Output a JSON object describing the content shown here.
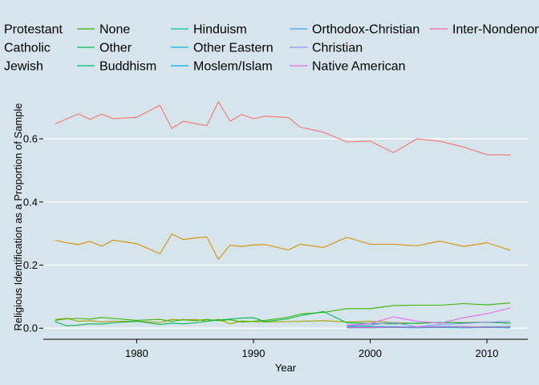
{
  "chart_data": {
    "type": "line",
    "title": "",
    "xlabel": "Year",
    "ylabel": "Religious Identification as a Proportion of Sample",
    "xlim": [
      1972,
      2013.5
    ],
    "ylim": [
      -0.035,
      0.74
    ],
    "x_ticks": [
      1980,
      1990,
      2000,
      2010
    ],
    "y_ticks": [
      0.0,
      0.2,
      0.4,
      0.6
    ],
    "y_tick_labels": [
      "0.0",
      "0.2",
      "0.4",
      "0.6"
    ],
    "grid": "horizontal",
    "legend": "top",
    "series": [
      {
        "name": "Protestant",
        "color": "#f8766d",
        "x": [
          1973,
          1974,
          1975,
          1976,
          1977,
          1978,
          1980,
          1982,
          1983,
          1984,
          1985,
          1986,
          1987,
          1988,
          1989,
          1990,
          1991,
          1993,
          1994,
          1996,
          1998,
          2000,
          2002,
          2004,
          2006,
          2008,
          2010,
          2012
        ],
        "y": [
          0.647,
          0.663,
          0.679,
          0.662,
          0.678,
          0.664,
          0.668,
          0.706,
          0.633,
          0.656,
          0.648,
          0.642,
          0.718,
          0.656,
          0.677,
          0.664,
          0.672,
          0.667,
          0.637,
          0.621,
          0.59,
          0.593,
          0.556,
          0.6,
          0.592,
          0.574,
          0.55,
          0.549
        ]
      },
      {
        "name": "Catholic",
        "color": "#d89000",
        "x": [
          1973,
          1974,
          1975,
          1976,
          1977,
          1978,
          1980,
          1982,
          1983,
          1984,
          1985,
          1986,
          1987,
          1988,
          1989,
          1990,
          1991,
          1993,
          1994,
          1996,
          1998,
          2000,
          2002,
          2004,
          2006,
          2008,
          2010,
          2012
        ],
        "y": [
          0.279,
          0.271,
          0.265,
          0.275,
          0.26,
          0.279,
          0.268,
          0.236,
          0.298,
          0.281,
          0.286,
          0.289,
          0.218,
          0.263,
          0.259,
          0.264,
          0.265,
          0.248,
          0.266,
          0.256,
          0.288,
          0.266,
          0.266,
          0.261,
          0.276,
          0.259,
          0.271,
          0.247
        ]
      },
      {
        "name": "Jewish",
        "color": "#a3a500",
        "x": [
          1973,
          1974,
          1975,
          1976,
          1977,
          1978,
          1980,
          1982,
          1983,
          1984,
          1985,
          1986,
          1987,
          1988,
          1989,
          1990,
          1991,
          1993,
          1994,
          1996,
          1998,
          2000,
          2002,
          2004,
          2006,
          2008,
          2010,
          2012
        ],
        "y": [
          0.028,
          0.031,
          0.022,
          0.024,
          0.02,
          0.022,
          0.022,
          0.018,
          0.028,
          0.026,
          0.028,
          0.023,
          0.028,
          0.014,
          0.023,
          0.021,
          0.02,
          0.021,
          0.022,
          0.024,
          0.02,
          0.022,
          0.018,
          0.015,
          0.018,
          0.018,
          0.019,
          0.016
        ]
      },
      {
        "name": "None",
        "color": "#39b600",
        "x": [
          1973,
          1974,
          1975,
          1976,
          1977,
          1978,
          1980,
          1982,
          1983,
          1984,
          1985,
          1986,
          1987,
          1988,
          1989,
          1990,
          1991,
          1993,
          1994,
          1996,
          1998,
          2000,
          2002,
          2004,
          2006,
          2008,
          2010,
          2012
        ],
        "y": [
          0.025,
          0.03,
          0.031,
          0.029,
          0.034,
          0.031,
          0.025,
          0.028,
          0.022,
          0.027,
          0.024,
          0.028,
          0.024,
          0.027,
          0.02,
          0.022,
          0.025,
          0.035,
          0.045,
          0.05,
          0.062,
          0.062,
          0.072,
          0.073,
          0.073,
          0.078,
          0.074,
          0.08
        ]
      },
      {
        "name": "Other",
        "color": "#00bb4e",
        "x": [
          1973,
          1974,
          1975,
          1976,
          1977,
          1978,
          1980,
          1982,
          1983,
          1984,
          1985,
          1986,
          1987,
          1988,
          1989,
          1990,
          1991,
          1993,
          1994,
          1996,
          1998,
          2000,
          2002,
          2004,
          2006,
          2008,
          2010,
          2012
        ],
        "y": [
          0.021,
          0.008,
          0.01,
          0.014,
          0.013,
          0.017,
          0.022,
          0.012,
          0.016,
          0.014,
          0.017,
          0.022,
          0.026,
          0.029,
          0.032,
          0.033,
          0.021,
          0.03,
          0.04,
          0.053,
          0.017,
          0.015,
          0.014,
          0.016,
          0.018,
          0.017,
          0.019,
          0.016
        ]
      },
      {
        "name": "Buddhism",
        "color": "#00bf7d",
        "x": [
          1998,
          2000,
          2002,
          2004,
          2006,
          2008,
          2010,
          2012
        ],
        "y": [
          0.006,
          0.006,
          0.005,
          0.004,
          0.006,
          0.005,
          0.004,
          0.006
        ]
      },
      {
        "name": "Hinduism",
        "color": "#00c1a3",
        "x": [
          1998,
          2000,
          2002,
          2004,
          2006,
          2008,
          2010,
          2012
        ],
        "y": [
          0.002,
          0.003,
          0.003,
          0.004,
          0.003,
          0.004,
          0.005,
          0.005
        ]
      },
      {
        "name": "Other Eastern",
        "color": "#00bae0",
        "x": [
          1998,
          2000,
          2002,
          2004,
          2006,
          2008,
          2010,
          2012
        ],
        "y": [
          0.001,
          0.001,
          0.002,
          0.001,
          0.002,
          0.001,
          0.002,
          0.001
        ]
      },
      {
        "name": "Moslem/Islam",
        "color": "#00b0f6",
        "x": [
          1998,
          2000,
          2002,
          2004,
          2006,
          2008,
          2010,
          2012
        ],
        "y": [
          0.002,
          0.003,
          0.004,
          0.003,
          0.004,
          0.004,
          0.003,
          0.004
        ]
      },
      {
        "name": "Orthodox-Christian",
        "color": "#35a2ff",
        "x": [
          1998,
          2000,
          2002,
          2004,
          2006,
          2008,
          2010,
          2012
        ],
        "y": [
          0.004,
          0.004,
          0.005,
          0.004,
          0.005,
          0.005,
          0.004,
          0.006
        ]
      },
      {
        "name": "Christian",
        "color": "#9590ff",
        "x": [
          1998,
          2000,
          2002,
          2004,
          2006,
          2008,
          2010,
          2012
        ],
        "y": [
          0.008,
          0.011,
          0.018,
          0.005,
          0.012,
          0.015,
          0.019,
          0.022
        ]
      },
      {
        "name": "Native American",
        "color": "#e76bf3",
        "x": [
          1998,
          2000,
          2002,
          2004,
          2006,
          2008,
          2010,
          2012
        ],
        "y": [
          0.01,
          0.015,
          0.036,
          0.022,
          0.016,
          0.033,
          0.046,
          0.064
        ]
      },
      {
        "name": "Inter-Nondenominational",
        "color": "#ff62bc",
        "x": [
          1998,
          2000,
          2002,
          2004,
          2006,
          2008,
          2010,
          2012
        ],
        "y": [
          0.002,
          0.002,
          0.003,
          0.003,
          0.004,
          0.004,
          0.003,
          0.004
        ]
      }
    ]
  }
}
